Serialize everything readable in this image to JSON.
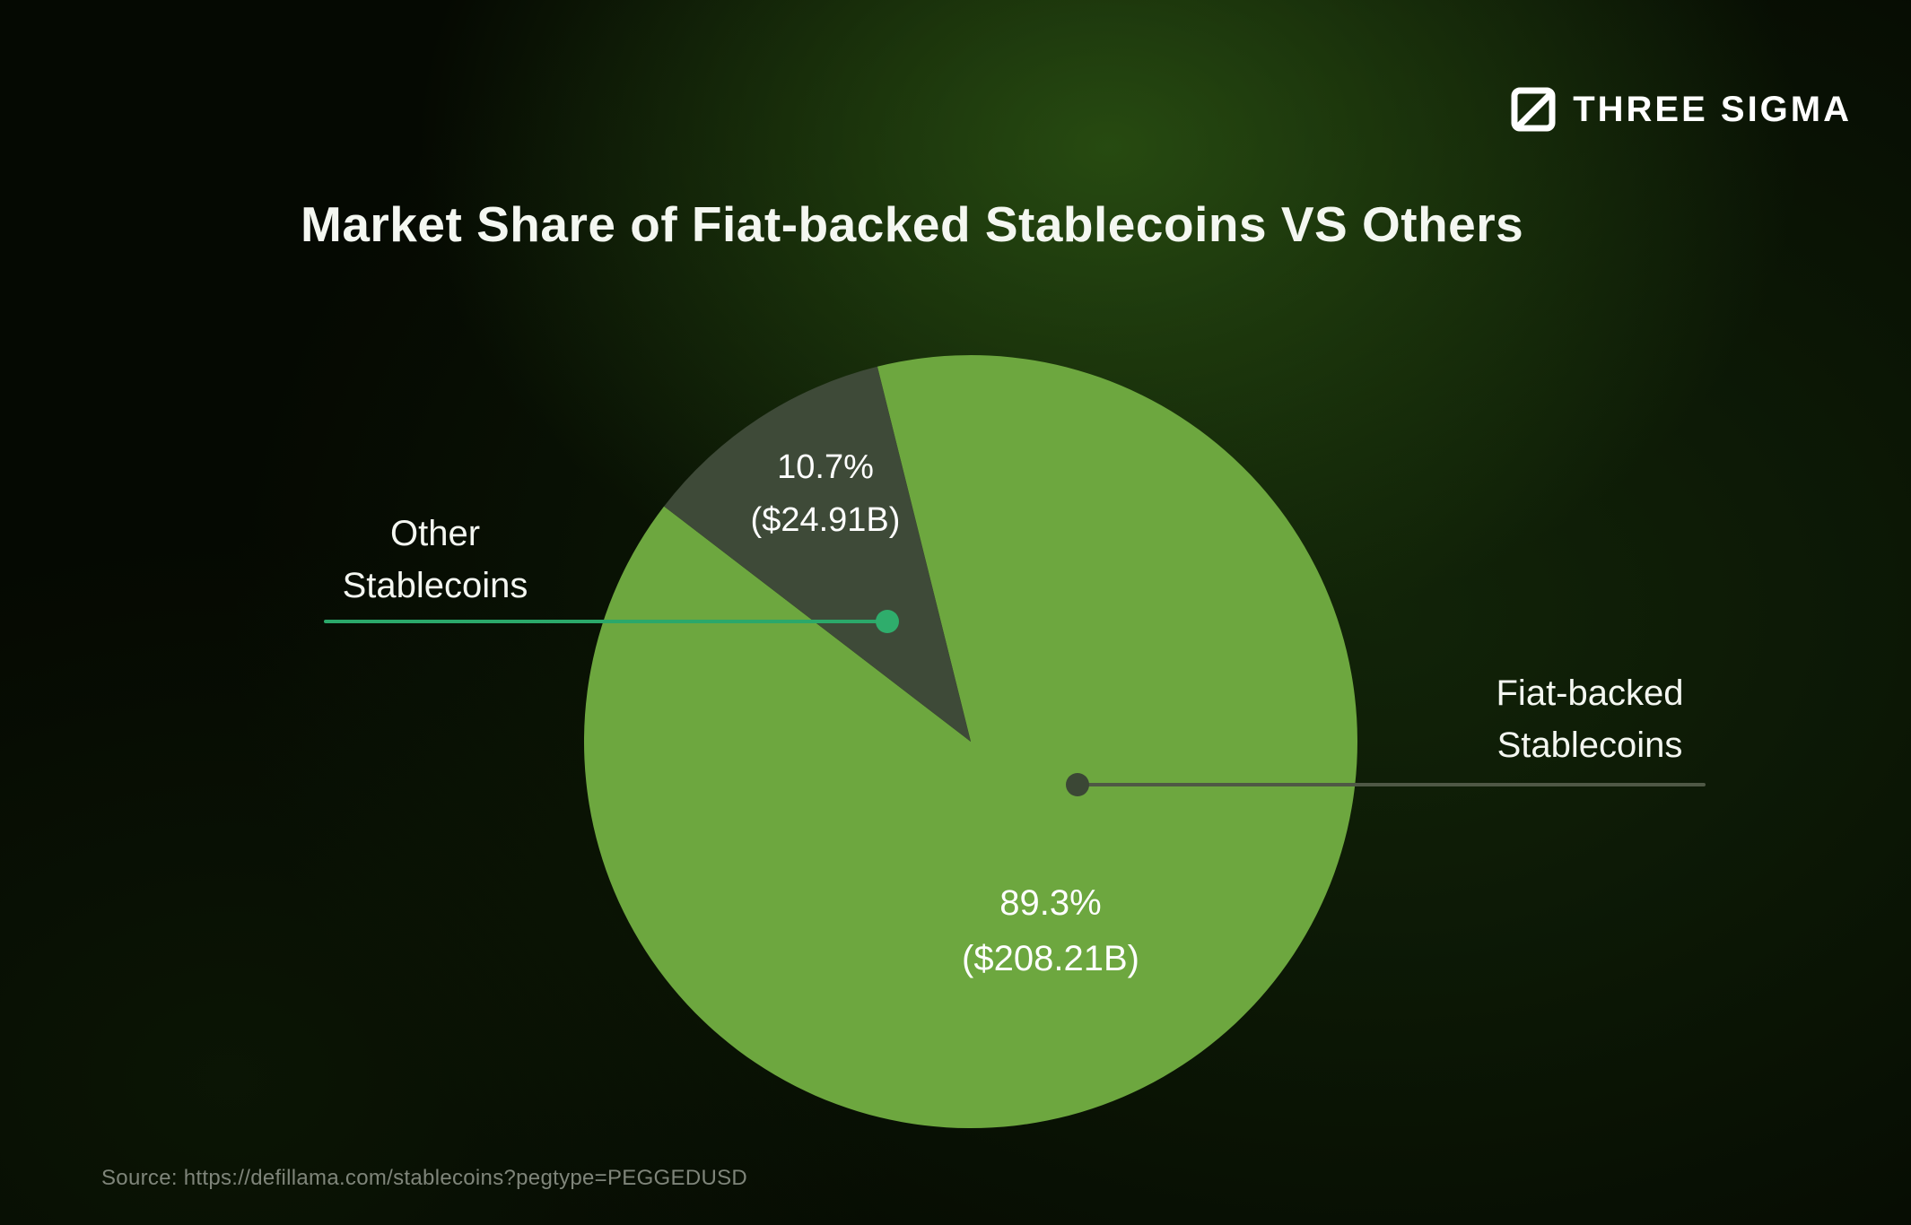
{
  "brand": {
    "name": "THREE SIGMA"
  },
  "title": "Market Share of Fiat-backed Stablecoins VS Others",
  "source": "Source: https://defillama.com/stablecoins?pegtype=PEGGEDUSD",
  "chart_data": {
    "type": "pie",
    "title": "Market Share of Fiat-backed Stablecoins VS Others",
    "slices": [
      {
        "label": "Fiat-backed Stablecoins",
        "percent": 89.3,
        "amount_usd_billion": 208.21,
        "value_label": "89.3%",
        "amount_label": "($208.21B)",
        "color": "#6DA73F"
      },
      {
        "label": "Other Stablecoins",
        "percent": 10.7,
        "amount_usd_billion": 24.91,
        "value_label": "10.7%",
        "amount_label": "($24.91B)",
        "color": "#3E4A38"
      }
    ],
    "start_angle_deg": -13.98,
    "legend_position": "callout-labels",
    "grid": false
  },
  "callouts": {
    "left": {
      "line1": "Other",
      "line2": "Stablecoins",
      "line_color": "#2BA86A",
      "dot_color": "#2FAD6C"
    },
    "right": {
      "line1": "Fiat-backed",
      "line2": "Stablecoins",
      "line_color": "#4F5845",
      "dot_color": "#3B4735"
    }
  }
}
